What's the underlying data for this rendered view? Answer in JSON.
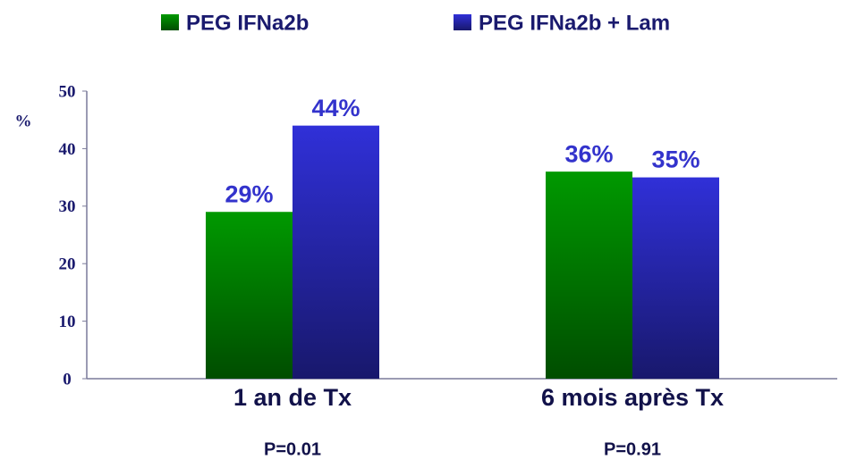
{
  "chart_data": {
    "type": "bar",
    "categories": [
      "1 an de Tx",
      "6 mois après Tx"
    ],
    "series": [
      {
        "name": "PEG IFNa2b",
        "color": "#009900",
        "values": [
          29,
          36
        ],
        "value_labels": [
          "29%",
          "36%"
        ]
      },
      {
        "name": "PEG IFNa2b + Lam",
        "color": "#3030d8",
        "values": [
          44,
          35
        ],
        "value_labels": [
          "44%",
          "35%"
        ]
      }
    ],
    "y_label": "%",
    "annotations": [
      "P=0.01",
      "P=0.91"
    ],
    "ylim": [
      0,
      50
    ],
    "yticks": [
      0,
      10,
      20,
      30,
      40,
      50
    ],
    "legend": "top"
  }
}
